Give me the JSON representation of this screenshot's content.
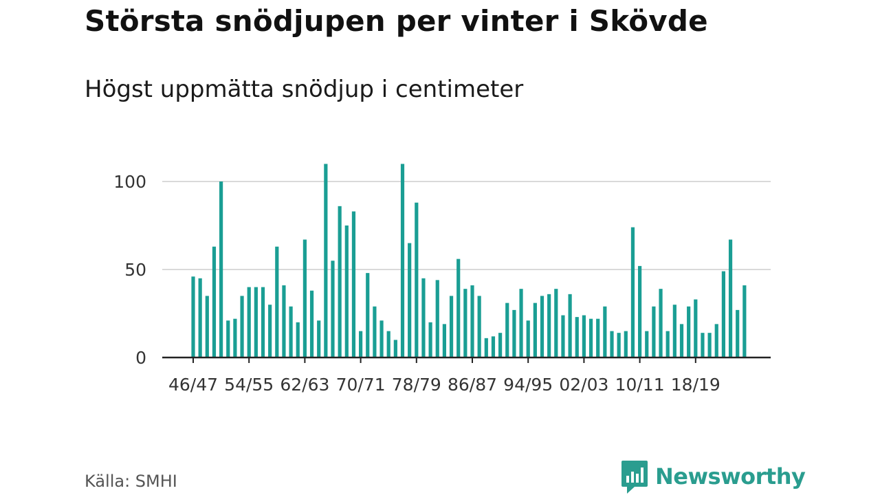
{
  "title": "Största snödjupen per vinter i Skövde",
  "subtitle": "Högst uppmätta snödjup i centimeter",
  "source": "Källa: SMHI",
  "logo": {
    "text": "Newsworthy",
    "icon": "chat-bar-chart-icon"
  },
  "colors": {
    "bar": "#1a9e94",
    "grid": "#d9d9d9",
    "axis": "#222222",
    "logo": "#2a9d8f"
  },
  "chart_data": {
    "type": "bar",
    "title": "Största snödjupen per vinter i Skövde",
    "subtitle": "Högst uppmätta snödjup i centimeter",
    "ylim": [
      0,
      100
    ],
    "yticks": [
      0,
      50,
      100
    ],
    "grid": true,
    "xtick_labels": [
      "46/47",
      "54/55",
      "62/63",
      "70/71",
      "78/79",
      "86/87",
      "94/95",
      "02/03",
      "10/11",
      "18/19"
    ],
    "categories": [
      "46/47",
      "47/48",
      "48/49",
      "49/50",
      "50/51",
      "51/52",
      "52/53",
      "53/54",
      "54/55",
      "55/56",
      "56/57",
      "57/58",
      "58/59",
      "59/60",
      "60/61",
      "61/62",
      "62/63",
      "63/64",
      "64/65",
      "65/66",
      "66/67",
      "67/68",
      "68/69",
      "69/70",
      "70/71",
      "71/72",
      "72/73",
      "73/74",
      "74/75",
      "75/76",
      "76/77",
      "77/78",
      "78/79",
      "79/80",
      "80/81",
      "81/82",
      "82/83",
      "83/84",
      "84/85",
      "85/86",
      "86/87",
      "87/88",
      "88/89",
      "89/90",
      "90/91",
      "91/92",
      "92/93",
      "93/94",
      "94/95",
      "95/96",
      "96/97",
      "97/98",
      "98/99",
      "99/00",
      "00/01",
      "01/02",
      "02/03",
      "03/04",
      "04/05",
      "05/06",
      "06/07",
      "07/08",
      "08/09",
      "09/10",
      "10/11",
      "11/12",
      "12/13",
      "13/14",
      "14/15",
      "15/16",
      "16/17",
      "17/18",
      "18/19",
      "19/20",
      "20/21",
      "21/22",
      "22/23",
      "23/24",
      "24/25",
      "25/26"
    ],
    "values": [
      46,
      45,
      35,
      63,
      100,
      21,
      22,
      35,
      40,
      40,
      40,
      30,
      63,
      41,
      29,
      20,
      67,
      38,
      21,
      110,
      55,
      86,
      75,
      83,
      15,
      48,
      29,
      21,
      15,
      10,
      110,
      65,
      88,
      45,
      20,
      44,
      19,
      35,
      56,
      39,
      41,
      35,
      11,
      12,
      14,
      31,
      27,
      39,
      21,
      31,
      35,
      36,
      39,
      24,
      36,
      23,
      24,
      22,
      22,
      29,
      15,
      14,
      15,
      74,
      52,
      15,
      29,
      39,
      15,
      30,
      19,
      29,
      33,
      14,
      14,
      19,
      49,
      67,
      27,
      41
    ]
  }
}
